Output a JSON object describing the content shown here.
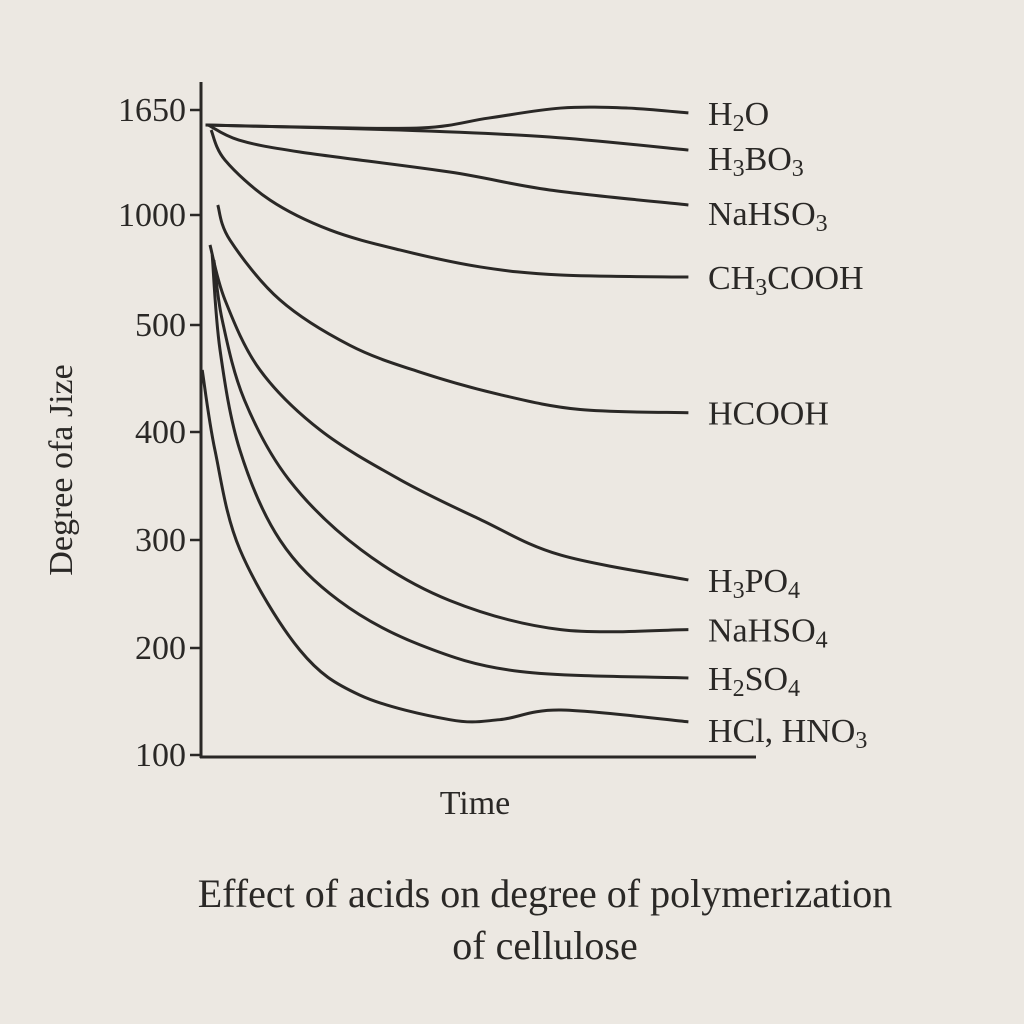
{
  "chart_data": {
    "type": "line",
    "title": "Effect of acids on degree of polymerization of cellulose",
    "title_lines": [
      "Effect of acids on degree of polymerization",
      "of cellulose"
    ],
    "xlabel": "Time",
    "ylabel": "Degree ofa Jize",
    "yticks": [
      100,
      200,
      300,
      400,
      500,
      1000,
      1650
    ],
    "ytick_labels": [
      "100",
      "200",
      "300",
      "400",
      "500",
      "1000",
      "1650"
    ],
    "y_scale": "piecewise (non-uniform tick spacing)",
    "xlim": [
      0,
      100
    ],
    "ylim": [
      100,
      1650
    ],
    "grid": false,
    "legend": "inline labels at right end of each curve",
    "series": [
      {
        "name": "H2O",
        "label": [
          "H",
          "2",
          "O"
        ],
        "x": [
          1,
          18,
          40,
          52,
          65,
          77,
          88
        ],
        "y": [
          1557,
          1545,
          1539,
          1600,
          1662,
          1662,
          1632
        ]
      },
      {
        "name": "H3BO3",
        "label": [
          "H",
          "3",
          "BO",
          "3"
        ],
        "x": [
          1,
          36,
          63,
          88
        ],
        "y": [
          1557,
          1526,
          1483,
          1402
        ]
      },
      {
        "name": "NaHSO3",
        "label": [
          "NaHSO",
          "3"
        ],
        "x": [
          1.5,
          7,
          18,
          45,
          63,
          88
        ],
        "y": [
          1557,
          1464,
          1390,
          1266,
          1155,
          1062
        ]
      },
      {
        "name": "CH3COOH",
        "label": [
          "CH",
          "3",
          "COOH"
        ],
        "x": [
          2,
          4.5,
          12.6,
          23.4,
          36,
          50.5,
          65,
          88
        ],
        "y": [
          1526,
          1340,
          1093,
          932,
          841,
          764,
          727,
          718
        ]
      },
      {
        "name": "HCOOH",
        "label": [
          "HCOOH"
        ],
        "x": [
          3.2,
          5.4,
          14.4,
          27,
          39.6,
          54,
          68.5,
          88
        ],
        "y": [
          1062,
          886,
          614,
          481,
          456,
          435,
          421,
          418
        ]
      },
      {
        "name": "H3PO4",
        "label": [
          "H",
          "3",
          "PO",
          "4"
        ],
        "x": [
          1.8,
          4.5,
          10.8,
          21.6,
          36,
          50.5,
          65,
          88
        ],
        "y": [
          864,
          614,
          458,
          402,
          356,
          319,
          286,
          263
        ]
      },
      {
        "name": "NaHSO4",
        "label": [
          "NaHSO",
          "4"
        ],
        "x": [
          2.5,
          4,
          8,
          16,
          29,
          45,
          65,
          88
        ],
        "y": [
          795,
          523,
          430,
          356,
          291,
          244,
          217,
          217
        ]
      },
      {
        "name": "H2SO4",
        "label": [
          "H",
          "2",
          "SO",
          "4"
        ],
        "x": [
          2.2,
          3.6,
          7.2,
          14.4,
          25,
          39.6,
          57.7,
          88
        ],
        "y": [
          818,
          477,
          383,
          300,
          244,
          203,
          178,
          172
        ]
      },
      {
        "name": "HCl, HNO3",
        "label": [
          "HCl,   HNO",
          "3"
        ],
        "x": [
          0.4,
          2.7,
          7.2,
          18,
          28.8,
          45,
          54,
          65,
          88
        ],
        "y": [
          458,
          383,
          291,
          198,
          156,
          133,
          133,
          142,
          131
        ]
      }
    ]
  }
}
